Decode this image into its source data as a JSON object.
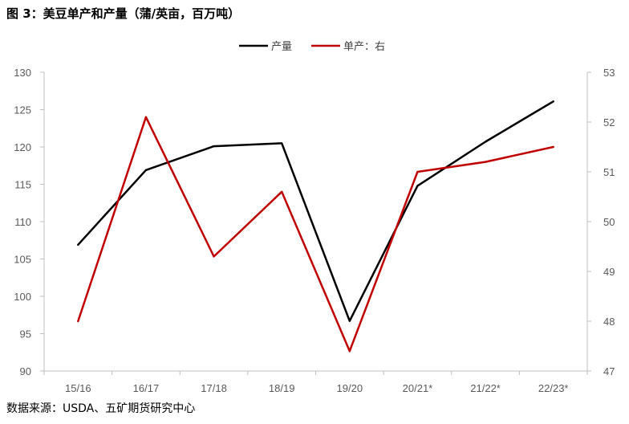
{
  "header": {
    "title": "图 3：美豆单产和产量（蒲/英亩，百万吨）"
  },
  "footer": {
    "source": "数据来源：USDA、五矿期货研究中心"
  },
  "chart_data": {
    "type": "line",
    "categories": [
      "15/16",
      "16/17",
      "17/18",
      "18/19",
      "19/20",
      "20/21*",
      "21/22*",
      "22/23*"
    ],
    "series": [
      {
        "name": "产量",
        "axis": "left",
        "color": "#000000",
        "values": [
          106.9,
          116.9,
          120.1,
          120.5,
          96.7,
          114.8,
          120.7,
          126.1
        ]
      },
      {
        "name": "单产：右",
        "axis": "right",
        "color": "#c00000",
        "values": [
          48.0,
          52.1,
          49.3,
          50.6,
          47.4,
          51.0,
          51.2,
          51.5
        ]
      }
    ],
    "y_left": {
      "min": 90,
      "max": 130,
      "step": 5,
      "ticks": [
        "90",
        "95",
        "100",
        "105",
        "110",
        "115",
        "120",
        "125",
        "130"
      ]
    },
    "y_right": {
      "min": 47,
      "max": 53,
      "step": 1,
      "ticks": [
        "47",
        "48",
        "49",
        "50",
        "51",
        "52",
        "53"
      ]
    },
    "legend_position": "top-center",
    "grid": false
  }
}
